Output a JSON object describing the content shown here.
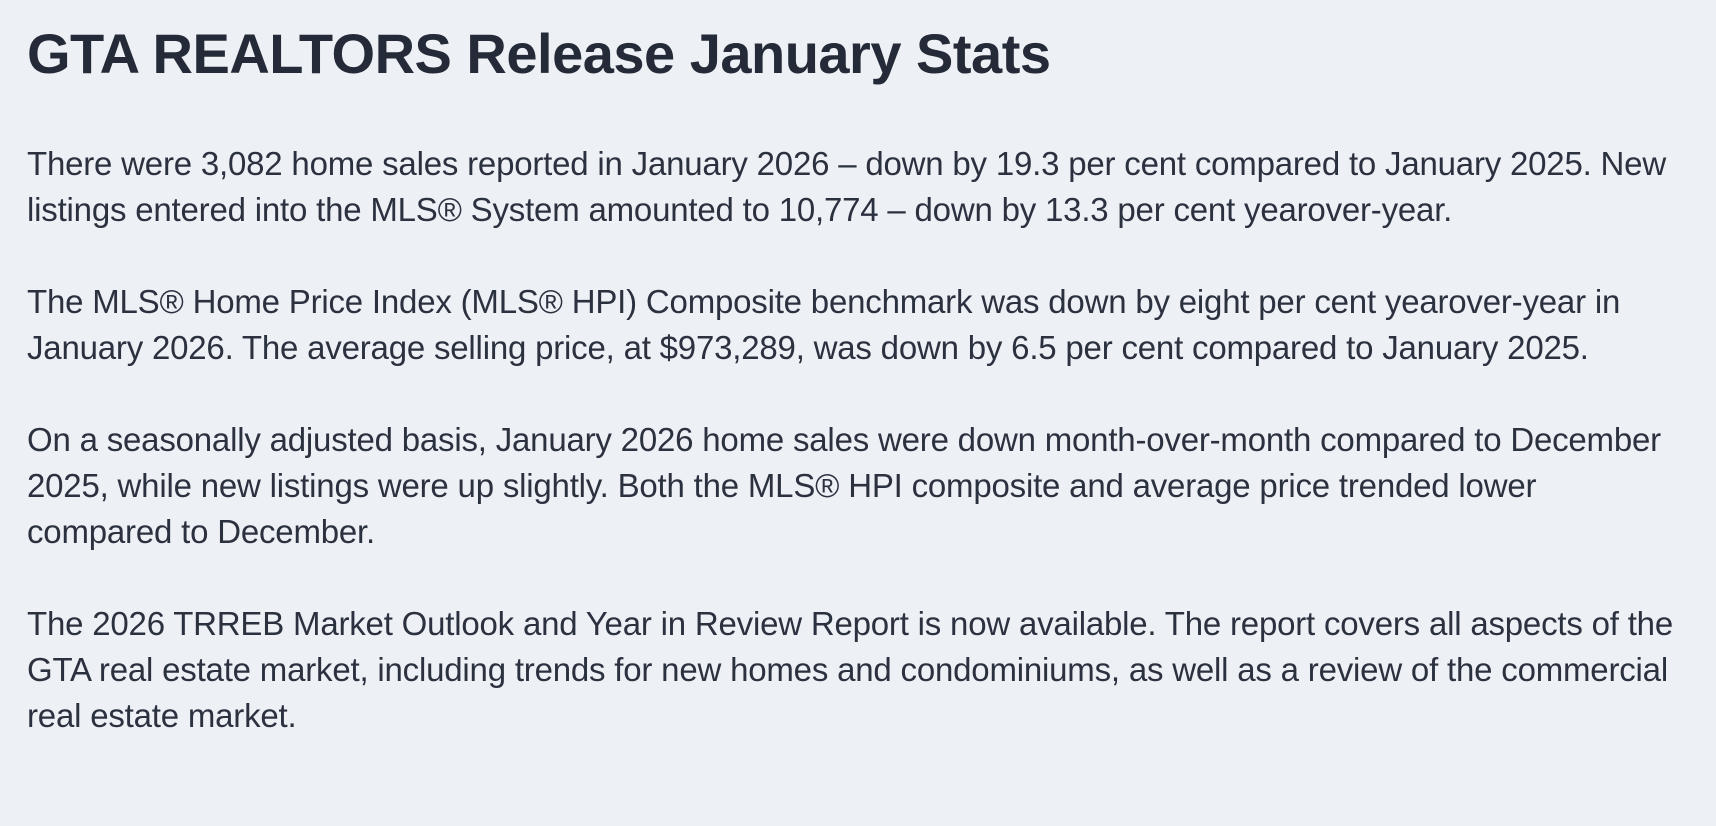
{
  "colors": {
    "background": "#edf0f4",
    "title_text": "#252a38",
    "body_text": "#2c3140"
  },
  "article": {
    "title": "GTA REALTORS Release January Stats",
    "paragraphs": [
      "There were 3,082 home sales reported in January 2026 – down by 19.3 per cent compared to January 2025. New listings entered into the MLS® System amounted to 10,774 – down by 13.3 per cent yearover-year.",
      "The MLS® Home Price Index (MLS® HPI) Composite benchmark was down by eight per cent yearover-year in January 2026. The average selling price, at $973,289, was down by 6.5 per cent compared to January 2025.",
      "On a seasonally adjusted basis, January 2026 home sales were down month-over-month compared to December 2025, while new listings were up slightly. Both the MLS® HPI composite and average price trended lower compared to December.",
      "The 2026 TRREB Market Outlook and Year in Review Report is now available. The report covers all aspects of the GTA real estate market, including trends for new homes and condominiums, as well as a review of the commercial real estate market."
    ]
  }
}
